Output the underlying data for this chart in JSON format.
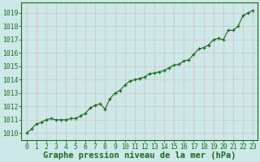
{
  "title": "Graphe pression niveau de la mer (hPa)",
  "x_values": [
    0,
    0.5,
    1,
    1.5,
    2,
    2.5,
    3,
    3.5,
    4,
    4.5,
    5,
    5.5,
    6,
    6.5,
    7,
    7.5,
    8,
    8.5,
    9,
    9.5,
    10,
    10.5,
    11,
    11.5,
    12,
    12.5,
    13,
    13.5,
    14,
    14.5,
    15,
    15.5,
    16,
    16.5,
    17,
    17.5,
    18,
    18.5,
    19,
    19.5,
    20,
    20.5,
    21,
    21.5,
    22,
    22.5,
    23
  ],
  "y_values": [
    1010.0,
    1010.3,
    1010.7,
    1010.8,
    1011.0,
    1011.1,
    1011.0,
    1011.0,
    1011.0,
    1011.1,
    1011.1,
    1011.3,
    1011.5,
    1011.9,
    1012.1,
    1012.2,
    1011.8,
    1012.6,
    1013.0,
    1013.2,
    1013.6,
    1013.9,
    1014.0,
    1014.1,
    1014.2,
    1014.45,
    1014.5,
    1014.6,
    1014.7,
    1014.9,
    1015.1,
    1015.15,
    1015.4,
    1015.5,
    1015.9,
    1016.3,
    1016.4,
    1016.6,
    1017.0,
    1017.1,
    1017.0,
    1017.7,
    1017.7,
    1018.0,
    1018.8,
    1019.0,
    1019.2
  ],
  "line_color": "#1a6b1a",
  "marker": "+",
  "marker_size": 3,
  "line_width": 0.8,
  "bg_color": "#cce8e8",
  "grid_color": "#ddbcbc",
  "axis_color": "#1a6b1a",
  "tick_label_color": "#1a6b1a",
  "xlabel_color": "#1a6b1a",
  "xlim": [
    -0.5,
    23.5
  ],
  "ylim": [
    1009.5,
    1019.8
  ],
  "ytick_start": 1010,
  "ytick_end": 1019,
  "ytick_step": 1,
  "xtick_labels": [
    "0",
    "1",
    "2",
    "3",
    "4",
    "5",
    "6",
    "7",
    "8",
    "9",
    "10",
    "11",
    "12",
    "13",
    "14",
    "15",
    "16",
    "17",
    "18",
    "19",
    "20",
    "21",
    "22",
    "23"
  ],
  "title_fontsize": 7.5,
  "tick_fontsize": 5.8
}
